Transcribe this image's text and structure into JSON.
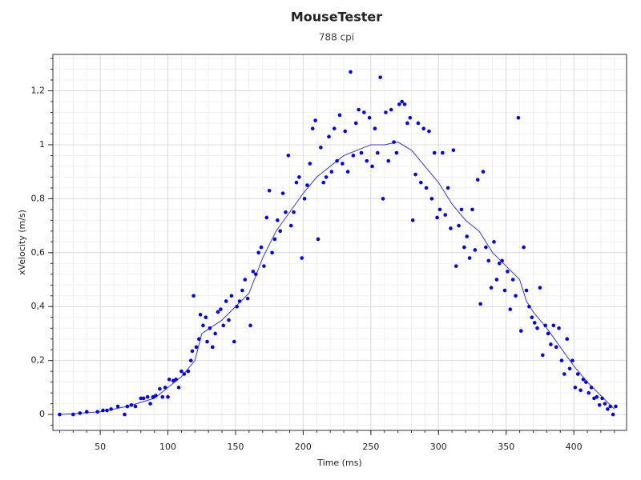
{
  "chart_data": {
    "type": "scatter",
    "title": "MouseTester",
    "subtitle": "788 cpi",
    "x_label": "Time (ms)",
    "y_label": "xVelocity (m/s)",
    "xlim": [
      15,
      439
    ],
    "ylim": [
      -0.059,
      1.335
    ],
    "xticks": [
      50,
      100,
      150,
      200,
      250,
      300,
      350,
      400
    ],
    "yticks": [
      0,
      {
        "value": 0.2,
        "label": "0,2"
      },
      {
        "value": 0.4,
        "label": "0,4"
      },
      {
        "value": 0.6,
        "label": "0,6"
      },
      {
        "value": 0.8,
        "label": "0,8"
      },
      1,
      {
        "value": 1.2,
        "label": "1,2"
      }
    ],
    "grid": true,
    "minor_divisions": 5,
    "points": {
      "color": "#0000ff",
      "x": [
        20,
        30,
        35,
        40,
        48,
        52,
        55,
        58,
        63,
        68,
        70,
        73,
        76,
        80,
        82,
        85,
        87,
        89,
        91,
        94,
        96,
        98,
        100,
        101,
        104,
        106,
        108,
        110,
        112,
        115,
        117,
        118,
        119,
        121,
        123,
        124,
        126,
        128,
        129,
        131,
        133,
        135,
        137,
        139,
        141,
        143,
        145,
        147,
        149,
        151,
        153,
        155,
        157,
        159,
        161,
        163,
        165,
        167,
        169,
        171,
        173,
        175,
        177,
        179,
        181,
        183,
        185,
        187,
        189,
        191,
        193,
        195,
        197,
        199,
        201,
        203,
        205,
        207,
        209,
        211,
        213,
        215,
        217,
        219,
        221,
        223,
        225,
        227,
        229,
        231,
        233,
        235,
        237,
        239,
        241,
        243,
        245,
        247,
        249,
        251,
        253,
        255,
        257,
        259,
        261,
        263,
        265,
        267,
        269,
        271,
        273,
        275,
        277,
        279,
        281,
        283,
        285,
        287,
        289,
        291,
        293,
        295,
        297,
        299,
        301,
        303,
        305,
        307,
        309,
        311,
        313,
        315,
        317,
        319,
        321,
        323,
        325,
        327,
        329,
        331,
        333,
        335,
        337,
        339,
        341,
        343,
        345,
        347,
        349,
        351,
        353,
        355,
        357,
        359,
        361,
        363,
        365,
        367,
        369,
        371,
        373,
        375,
        377,
        379,
        381,
        383,
        385,
        387,
        389,
        391,
        393,
        395,
        397,
        399,
        401,
        403,
        405,
        407,
        409,
        411,
        413,
        415,
        417,
        419,
        421,
        423,
        425,
        427,
        429,
        431
      ],
      "values": [
        0,
        0,
        0.005,
        0.01,
        0.01,
        0.015,
        0.015,
        0.02,
        0.03,
        0,
        0.03,
        0.035,
        0.03,
        0.06,
        0.06,
        0.065,
        0.04,
        0.065,
        0.07,
        0.095,
        0.065,
        0.1,
        0.065,
        0.13,
        0.125,
        0.13,
        0.1,
        0.16,
        0.15,
        0.16,
        0.2,
        0.235,
        0.44,
        0.25,
        0.28,
        0.37,
        0.33,
        0.36,
        0.27,
        0.32,
        0.25,
        0.3,
        0.38,
        0.39,
        0.33,
        0.42,
        0.35,
        0.44,
        0.27,
        0.4,
        0.42,
        0.46,
        0.5,
        0.43,
        0.33,
        0.53,
        0.52,
        0.6,
        0.62,
        0.55,
        0.73,
        0.83,
        0.6,
        0.65,
        0.72,
        0.68,
        0.82,
        0.75,
        0.96,
        0.7,
        0.75,
        0.86,
        0.88,
        0.58,
        0.8,
        0.85,
        0.93,
        1.06,
        1.09,
        0.65,
        0.99,
        0.86,
        0.88,
        1.03,
        0.9,
        1.06,
        0.94,
        1.11,
        0.93,
        1.05,
        0.9,
        1.27,
        0.96,
        1.08,
        1.13,
        0.97,
        1.12,
        0.94,
        1.1,
        0.92,
        1.06,
        0.97,
        1.25,
        0.8,
        1.12,
        0.94,
        1.13,
        1.01,
        0.97,
        1.15,
        1.16,
        1.15,
        1.08,
        1.1,
        0.72,
        0.89,
        1.08,
        0.86,
        1.06,
        0.84,
        1.05,
        0.8,
        0.97,
        0.73,
        0.76,
        0.97,
        0.74,
        0.84,
        0.69,
        0.98,
        0.55,
        0.7,
        0.76,
        0.62,
        0.66,
        0.58,
        0.76,
        0.61,
        0.87,
        0.41,
        0.9,
        0.62,
        0.57,
        0.47,
        0.64,
        0.5,
        0.56,
        0.57,
        0.46,
        0.53,
        0.39,
        0.5,
        0.44,
        1.1,
        0.31,
        0.62,
        0.46,
        0.4,
        0.36,
        0.34,
        0.32,
        0.47,
        0.22,
        0.33,
        0.3,
        0.26,
        0.33,
        0.25,
        0.32,
        0.2,
        0.15,
        0.28,
        0.17,
        0.2,
        0.1,
        0.15,
        0.09,
        0.13,
        0.12,
        0.08,
        0.1,
        0.06,
        0.065,
        0.035,
        0.06,
        0.04,
        0.02,
        0.03,
        0,
        0.03
      ]
    },
    "line": {
      "color": "#3333ff",
      "x": [
        20,
        50,
        70,
        90,
        100,
        110,
        120,
        125,
        140,
        150,
        160,
        170,
        180,
        190,
        200,
        210,
        220,
        230,
        240,
        250,
        260,
        270,
        280,
        290,
        300,
        310,
        320,
        330,
        340,
        350,
        360,
        365,
        370,
        380,
        390,
        400,
        410,
        420,
        430
      ],
      "values": [
        0,
        0.01,
        0.03,
        0.06,
        0.1,
        0.14,
        0.2,
        0.3,
        0.35,
        0.4,
        0.45,
        0.58,
        0.68,
        0.75,
        0.82,
        0.88,
        0.92,
        0.96,
        0.98,
        1.0,
        1.0,
        1.01,
        0.98,
        0.92,
        0.86,
        0.78,
        0.72,
        0.68,
        0.6,
        0.55,
        0.5,
        0.42,
        0.38,
        0.32,
        0.25,
        0.18,
        0.12,
        0.07,
        0.02
      ]
    }
  }
}
